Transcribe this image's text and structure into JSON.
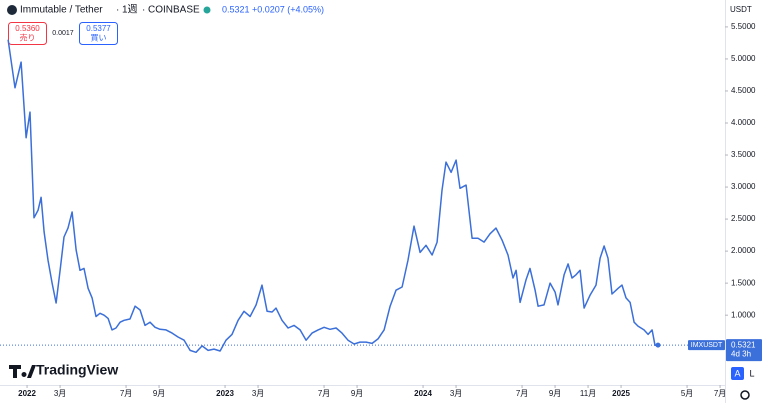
{
  "chart_data": {
    "type": "line",
    "symbol": "Immutable / Tether",
    "interval": "1週",
    "exchange": "COINBASE",
    "last_price": "0.5321",
    "change": "+0.0207 (+4.05%)",
    "sell_price": "0.5360",
    "sell_label": "売り",
    "spread": "0.0017",
    "buy_price": "0.5377",
    "buy_label": "買い",
    "currency": "USDT",
    "price_tag": {
      "symbol": "IMXUSDT",
      "price": "0.5321",
      "countdown": "4d 3h"
    },
    "branding": "TradingView",
    "scale_buttons": [
      "A",
      "L"
    ],
    "grid": false,
    "xlim": [
      -1.64,
      42.3
    ],
    "ylim": [
      -0.09,
      5.92
    ],
    "xticks": [
      {
        "value": 0,
        "label": "2022"
      },
      {
        "value": 2,
        "label": "3月"
      },
      {
        "value": 6,
        "label": "7月"
      },
      {
        "value": 8,
        "label": "9月"
      },
      {
        "value": 12,
        "label": "2023"
      },
      {
        "value": 14,
        "label": "3月"
      },
      {
        "value": 18,
        "label": "7月"
      },
      {
        "value": 20,
        "label": "9月"
      },
      {
        "value": 24,
        "label": "2024"
      },
      {
        "value": 26,
        "label": "3月"
      },
      {
        "value": 30,
        "label": "7月"
      },
      {
        "value": 32,
        "label": "9月"
      },
      {
        "value": 34,
        "label": "11月"
      },
      {
        "value": 36,
        "label": "2025"
      },
      {
        "value": 40,
        "label": "5月"
      },
      {
        "value": 42,
        "label": "7月"
      }
    ],
    "yticks": [
      {
        "value": 1,
        "label": "1.0000"
      },
      {
        "value": 1.5,
        "label": "1.5000"
      },
      {
        "value": 2,
        "label": "2.0000"
      },
      {
        "value": 2.5,
        "label": "2.5000"
      },
      {
        "value": 3,
        "label": "3.0000"
      },
      {
        "value": 3.5,
        "label": "3.5000"
      },
      {
        "value": 4,
        "label": "4.0000"
      },
      {
        "value": 4.5,
        "label": "4.5000"
      },
      {
        "value": 5,
        "label": "5.0000"
      },
      {
        "value": 5.5,
        "label": "5.5000"
      }
    ],
    "series": [
      {
        "name": "IMXUSDT",
        "color": "#3b6fd9",
        "x": [
          -1.15,
          -0.73,
          -0.36,
          -0.06,
          0.18,
          0.42,
          0.67,
          0.85,
          1.03,
          1.27,
          1.52,
          1.76,
          2.0,
          2.24,
          2.48,
          2.73,
          2.97,
          3.21,
          3.45,
          3.7,
          3.94,
          4.18,
          4.42,
          4.67,
          4.91,
          5.15,
          5.39,
          5.64,
          5.88,
          6.24,
          6.55,
          6.85,
          7.15,
          7.45,
          7.76,
          8.06,
          8.42,
          8.79,
          9.15,
          9.52,
          9.88,
          10.24,
          10.61,
          10.97,
          11.33,
          11.7,
          12.06,
          12.42,
          12.79,
          13.15,
          13.52,
          13.88,
          14.24,
          14.55,
          14.85,
          15.09,
          15.45,
          15.82,
          16.18,
          16.55,
          16.91,
          17.27,
          17.64,
          18.0,
          18.36,
          18.73,
          19.09,
          19.45,
          19.82,
          20.18,
          20.55,
          20.91,
          21.27,
          21.64,
          22.0,
          22.36,
          22.73,
          23.09,
          23.45,
          23.82,
          24.18,
          24.55,
          24.85,
          25.15,
          25.39,
          25.7,
          26.0,
          26.24,
          26.61,
          26.97,
          27.33,
          27.7,
          28.06,
          28.42,
          28.79,
          29.15,
          29.45,
          29.64,
          29.88,
          30.24,
          30.48,
          30.79,
          30.97,
          31.33,
          31.7,
          32.0,
          32.18,
          32.55,
          32.79,
          33.03,
          33.27,
          33.52,
          33.76,
          34.12,
          34.48,
          34.73,
          34.97,
          35.21,
          35.45,
          35.82,
          36.06,
          36.3,
          36.55,
          36.79,
          37.03,
          37.39,
          37.64,
          37.88,
          38.06,
          38.24
        ],
        "values": [
          5.3,
          4.55,
          4.95,
          3.77,
          4.17,
          2.52,
          2.64,
          2.84,
          2.3,
          1.86,
          1.5,
          1.19,
          1.7,
          2.22,
          2.36,
          2.61,
          2.02,
          1.7,
          1.73,
          1.42,
          1.27,
          0.98,
          1.03,
          1.0,
          0.95,
          0.77,
          0.8,
          0.89,
          0.92,
          0.94,
          1.14,
          1.08,
          0.84,
          0.89,
          0.81,
          0.78,
          0.77,
          0.72,
          0.66,
          0.61,
          0.45,
          0.42,
          0.52,
          0.45,
          0.47,
          0.44,
          0.61,
          0.7,
          0.92,
          1.06,
          0.98,
          1.16,
          1.47,
          1.06,
          1.05,
          1.11,
          0.92,
          0.8,
          0.84,
          0.77,
          0.61,
          0.72,
          0.77,
          0.81,
          0.78,
          0.8,
          0.72,
          0.61,
          0.55,
          0.58,
          0.58,
          0.56,
          0.63,
          0.77,
          1.14,
          1.39,
          1.44,
          1.86,
          2.39,
          1.98,
          2.09,
          1.94,
          2.14,
          2.95,
          3.39,
          3.23,
          3.42,
          2.98,
          3.03,
          2.2,
          2.2,
          2.14,
          2.27,
          2.36,
          2.17,
          1.94,
          1.58,
          1.7,
          1.2,
          1.55,
          1.73,
          1.39,
          1.14,
          1.16,
          1.5,
          1.36,
          1.16,
          1.63,
          1.8,
          1.58,
          1.63,
          1.7,
          1.11,
          1.31,
          1.47,
          1.89,
          2.08,
          1.89,
          1.33,
          1.42,
          1.47,
          1.27,
          1.2,
          0.89,
          0.83,
          0.77,
          0.7,
          0.77,
          0.53,
          0.5321
        ]
      }
    ]
  }
}
